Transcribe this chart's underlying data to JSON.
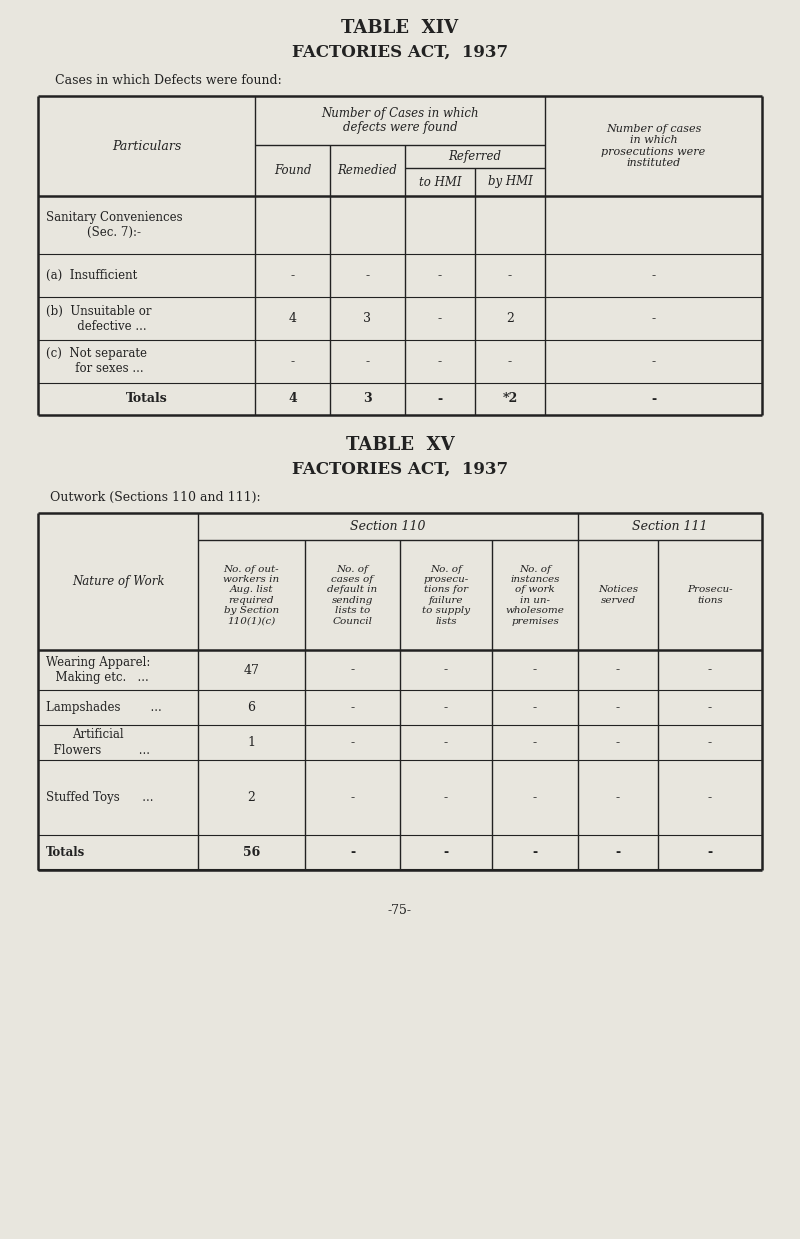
{
  "bg_color": "#e8e6de",
  "title14_1": "TABLE  XIV",
  "title14_2": "FACTORIES ACT,  1937",
  "subtitle14": "Cases in which Defects were found:",
  "title15_1": "TABLE  XV",
  "title15_2": "FACTORIES ACT,  1937",
  "subtitle15": "Outwork (Sections 110 and 111):",
  "footer": "-75-"
}
